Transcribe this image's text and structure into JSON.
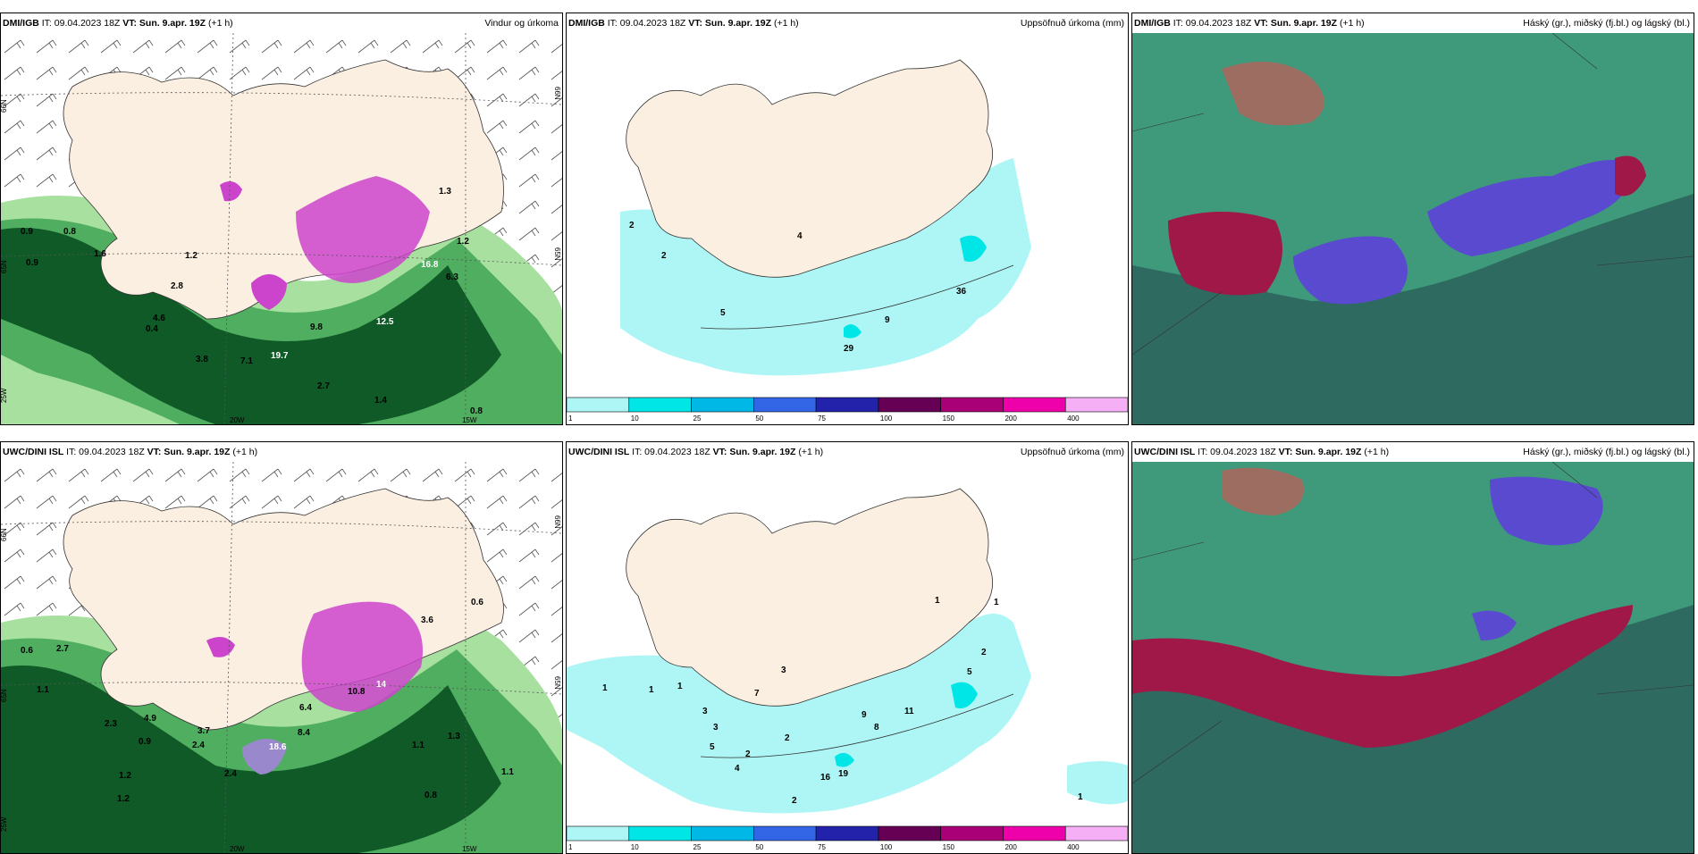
{
  "panels": {
    "p1": {
      "src": "DMI/IGB",
      "it": " IT: 09.04.2023 18Z ",
      "vt": "VT: Sun. 9.apr. 19Z",
      "lead": " (+1 h)",
      "field": "Vindur og úrkoma",
      "labels": [
        "0.9",
        "0.8",
        "0.9",
        "1.6",
        "1.2",
        "2.8",
        "4.6",
        "0.4",
        "3.8",
        "7.1",
        "19.7",
        "2.7",
        "1.4",
        "0.8",
        "9.8",
        "12.5",
        "16.8",
        "6.3",
        "1.3",
        "1.2"
      ],
      "grid": [
        "66N",
        "65N",
        "25W",
        "20W",
        "15W",
        "66N",
        "65N"
      ]
    },
    "p2": {
      "src": "DMI/IGB",
      "it": " IT: 09.04.2023 18Z ",
      "vt": "VT: Sun. 9.apr. 19Z",
      "lead": " (+1 h)",
      "field": "Uppsöfnuð úrkoma (mm)",
      "labels": [
        "2",
        "4",
        "5",
        "9",
        "29",
        "36",
        "2"
      ]
    },
    "p3": {
      "src": "DMI/IGB",
      "it": " IT: 09.04.2023 18Z ",
      "vt": "VT: Sun. 9.apr. 19Z",
      "lead": " (+1 h)",
      "field": "Háský (gr.), miðský (fj.bl.) og lágský (bl.)"
    },
    "p4": {
      "src": "UWC/DINI ISL",
      "it": " IT: 09.04.2023 18Z ",
      "vt": "VT: Sun. 9.apr. 19Z",
      "lead": " (+1 h)",
      "field": "",
      "labels": [
        "0.6",
        "2.7",
        "1.1",
        "0.9",
        "1.2",
        "2.3",
        "4.9",
        "3.7",
        "2.4",
        "18.6",
        "14",
        "10.8",
        "8.4",
        "6.4",
        "1.1",
        "1.3",
        "0.8",
        "2.4",
        "1.2",
        "1.1",
        "0.6",
        "3.6"
      ],
      "grid": [
        "66N",
        "65N",
        "25W",
        "20W",
        "15W",
        "66N",
        "65N"
      ]
    },
    "p5": {
      "src": "UWC/DINI ISL",
      "it": " IT: 09.04.2023 18Z ",
      "vt": "VT: Sun. 9.apr. 19Z",
      "lead": " (+1 h)",
      "field": "Uppsöfnuð úrkoma (mm)",
      "labels": [
        "1",
        "1",
        "1",
        "3",
        "7",
        "3",
        "5",
        "2",
        "4",
        "16",
        "19",
        "11",
        "8",
        "9",
        "2",
        "1",
        "5",
        "1",
        "2",
        "1",
        "3",
        "2"
      ]
    },
    "p6": {
      "src": "UWC/DINI ISL",
      "it": " IT: 09.04.2023 18Z ",
      "vt": "VT: Sun. 9.apr. 19Z",
      "lead": " (+1 h)",
      "field": "Háský (gr.), miðský (fj.bl.) og lágský (bl.)"
    }
  },
  "colorbar": {
    "ticks": [
      "1",
      "10",
      "25",
      "50",
      "75",
      "100",
      "150",
      "200",
      "400"
    ],
    "colors": [
      "#aef6f6",
      "#00e6e6",
      "#00b8e6",
      "#3366e6",
      "#2222aa",
      "#660055",
      "#aa0077",
      "#ee00aa",
      "#f5b0f5"
    ]
  },
  "colors": {
    "land": "#fbefe2",
    "wind_light": "#a8e0a0",
    "wind_mid": "#4fae5f",
    "wind_dark": "#0f5a26",
    "precip_purple": "#cc44cc",
    "cloud_green": "#3e9a7a",
    "cloud_red": "#a01848",
    "cloud_blue": "#5a4ad0",
    "sea_cloud": "#2e6a60"
  }
}
